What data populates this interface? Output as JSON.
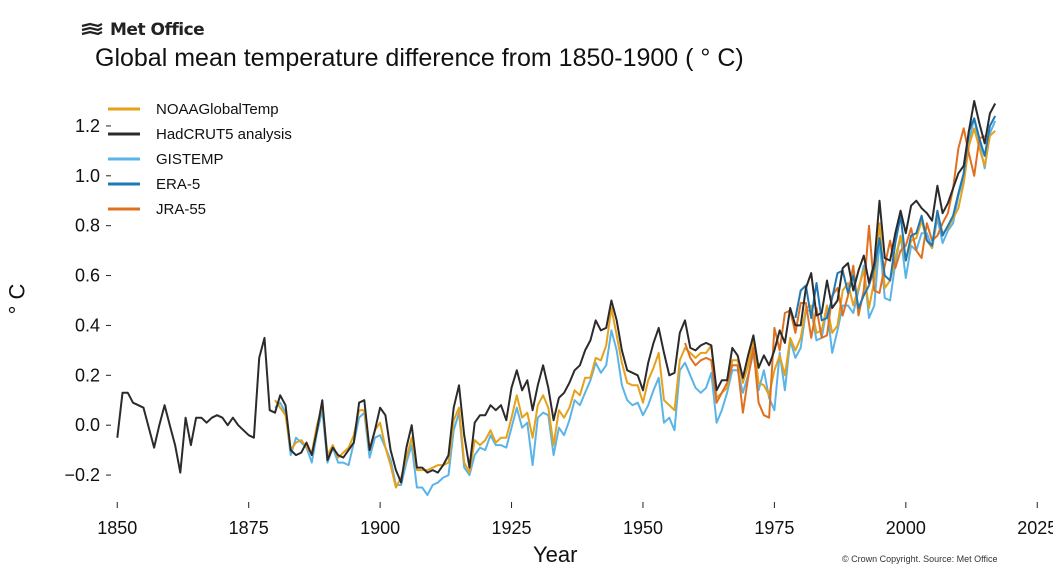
{
  "brand": {
    "logo_text": "Met Office"
  },
  "credit": "© Crown Copyright. Source: Met Office",
  "chart_data": {
    "type": "line",
    "title": "Global mean temperature difference from 1850-1900 ( ° C)",
    "xlabel": "Year",
    "ylabel": "° C",
    "xlim": [
      1849,
      2024
    ],
    "ylim": [
      -0.3,
      1.32
    ],
    "xticks": [
      1850,
      1875,
      1900,
      1925,
      1950,
      1975,
      2000,
      2025
    ],
    "yticks": [
      -0.2,
      0.0,
      0.2,
      0.4,
      0.6,
      0.8,
      1.0,
      1.2
    ],
    "ytick_labels": [
      "−0.2",
      "0.0",
      "0.2",
      "0.4",
      "0.6",
      "0.8",
      "1.0",
      "1.2"
    ],
    "grid": false,
    "legend_position": "top-left",
    "series": [
      {
        "name": "NOAAGlobalTemp",
        "color": "#e6a11a",
        "x_start": 1880,
        "values": [
          0.1,
          0.07,
          0.04,
          -0.1,
          -0.07,
          -0.06,
          -0.09,
          -0.11,
          0.0,
          0.08,
          -0.12,
          -0.08,
          -0.13,
          -0.11,
          -0.09,
          -0.04,
          0.06,
          0.06,
          -0.1,
          -0.02,
          0.01,
          -0.09,
          -0.16,
          -0.25,
          -0.21,
          -0.13,
          -0.05,
          -0.18,
          -0.18,
          -0.18,
          -0.17,
          -0.16,
          -0.16,
          -0.15,
          0.02,
          0.07,
          -0.15,
          -0.19,
          -0.06,
          -0.08,
          -0.06,
          -0.02,
          -0.07,
          -0.05,
          -0.05,
          0.03,
          0.12,
          0.03,
          0.05,
          -0.05,
          0.08,
          0.12,
          0.07,
          -0.08,
          0.06,
          0.03,
          0.07,
          0.14,
          0.12,
          0.19,
          0.19,
          0.27,
          0.26,
          0.32,
          0.47,
          0.36,
          0.25,
          0.17,
          0.16,
          0.16,
          0.09,
          0.18,
          0.23,
          0.29,
          0.1,
          0.08,
          0.06,
          0.26,
          0.31,
          0.29,
          0.27,
          0.29,
          0.29,
          0.32,
          0.11,
          0.13,
          0.15,
          0.26,
          0.26,
          0.17,
          0.24,
          0.34,
          0.17,
          0.16,
          0.12,
          0.22,
          0.28,
          0.2,
          0.35,
          0.3,
          0.35,
          0.47,
          0.48,
          0.37,
          0.38,
          0.48,
          0.37,
          0.4,
          0.54,
          0.57,
          0.48,
          0.55,
          0.62,
          0.47,
          0.58,
          0.81,
          0.55,
          0.58,
          0.67,
          0.76,
          0.66,
          0.74,
          0.75,
          0.82,
          0.74,
          0.71,
          0.85,
          0.77,
          0.79,
          0.83,
          0.87,
          0.97,
          1.12,
          1.19,
          1.11,
          1.04,
          1.16,
          1.18
        ]
      },
      {
        "name": "HadCRUT5 analysis",
        "color": "#2b2b2b",
        "x_start": 1850,
        "values": [
          -0.05,
          0.13,
          0.13,
          0.09,
          0.08,
          0.07,
          -0.01,
          -0.09,
          0.0,
          0.08,
          0.0,
          -0.08,
          -0.19,
          0.03,
          -0.08,
          0.03,
          0.03,
          0.01,
          0.03,
          0.04,
          0.03,
          0.0,
          0.03,
          0.0,
          -0.02,
          -0.04,
          -0.05,
          0.27,
          0.35,
          0.06,
          0.05,
          0.12,
          0.08,
          -0.1,
          -0.12,
          -0.11,
          -0.07,
          -0.12,
          -0.02,
          0.1,
          -0.14,
          -0.09,
          -0.12,
          -0.13,
          -0.1,
          -0.07,
          0.09,
          0.1,
          -0.1,
          -0.02,
          0.07,
          0.04,
          -0.1,
          -0.18,
          -0.23,
          -0.09,
          0.0,
          -0.17,
          -0.17,
          -0.19,
          -0.18,
          -0.19,
          -0.16,
          -0.12,
          0.07,
          0.16,
          -0.04,
          -0.17,
          0.01,
          0.04,
          0.04,
          0.08,
          0.06,
          0.08,
          0.02,
          0.15,
          0.22,
          0.14,
          0.18,
          0.06,
          0.16,
          0.24,
          0.15,
          0.02,
          0.11,
          0.13,
          0.17,
          0.22,
          0.24,
          0.3,
          0.34,
          0.42,
          0.38,
          0.39,
          0.5,
          0.42,
          0.3,
          0.22,
          0.21,
          0.2,
          0.14,
          0.25,
          0.33,
          0.39,
          0.29,
          0.2,
          0.21,
          0.37,
          0.42,
          0.31,
          0.3,
          0.32,
          0.33,
          0.32,
          0.14,
          0.18,
          0.18,
          0.31,
          0.28,
          0.19,
          0.28,
          0.36,
          0.23,
          0.28,
          0.24,
          0.3,
          0.38,
          0.33,
          0.47,
          0.4,
          0.4,
          0.55,
          0.61,
          0.44,
          0.45,
          0.58,
          0.47,
          0.5,
          0.63,
          0.65,
          0.54,
          0.62,
          0.68,
          0.57,
          0.65,
          0.9,
          0.67,
          0.66,
          0.77,
          0.86,
          0.77,
          0.88,
          0.9,
          0.87,
          0.85,
          0.82,
          0.96,
          0.85,
          0.89,
          0.95,
          1.01,
          1.04,
          1.18,
          1.3,
          1.21,
          1.13,
          1.25,
          1.29
        ]
      },
      {
        "name": "GISTEMP",
        "color": "#5ab4e8",
        "x_start": 1880,
        "values": [
          0.07,
          0.09,
          0.05,
          -0.12,
          -0.05,
          -0.07,
          -0.09,
          -0.15,
          -0.03,
          0.06,
          -0.15,
          -0.09,
          -0.15,
          -0.15,
          -0.16,
          -0.07,
          0.03,
          0.05,
          -0.13,
          -0.05,
          -0.04,
          -0.09,
          -0.14,
          -0.24,
          -0.24,
          -0.15,
          -0.08,
          -0.25,
          -0.25,
          -0.28,
          -0.24,
          -0.23,
          -0.21,
          -0.2,
          -0.02,
          0.05,
          -0.17,
          -0.2,
          -0.12,
          -0.09,
          -0.1,
          -0.04,
          -0.08,
          -0.08,
          -0.09,
          -0.01,
          0.07,
          -0.01,
          0.01,
          -0.16,
          0.03,
          0.05,
          0.04,
          -0.12,
          -0.01,
          -0.04,
          0.02,
          0.1,
          0.08,
          0.13,
          0.18,
          0.25,
          0.21,
          0.24,
          0.38,
          0.3,
          0.16,
          0.1,
          0.08,
          0.09,
          0.04,
          0.08,
          0.14,
          0.19,
          0.01,
          0.03,
          -0.02,
          0.22,
          0.25,
          0.2,
          0.15,
          0.13,
          0.15,
          0.21,
          0.01,
          0.06,
          0.13,
          0.22,
          0.22,
          0.13,
          0.2,
          0.29,
          0.14,
          0.22,
          0.11,
          0.06,
          0.29,
          0.14,
          0.34,
          0.27,
          0.31,
          0.46,
          0.46,
          0.34,
          0.35,
          0.47,
          0.29,
          0.38,
          0.48,
          0.48,
          0.45,
          0.54,
          0.64,
          0.43,
          0.48,
          0.74,
          0.51,
          0.5,
          0.65,
          0.76,
          0.59,
          0.72,
          0.7,
          0.77,
          0.77,
          0.71,
          0.83,
          0.73,
          0.78,
          0.81,
          0.92,
          0.99,
          1.14,
          1.23,
          1.13,
          1.03,
          1.17,
          1.22
        ]
      },
      {
        "name": "ERA-5",
        "color": "#1f78b4",
        "x_start": 1979,
        "values": [
          0.43,
          0.54,
          0.56,
          0.43,
          0.57,
          0.42,
          0.43,
          0.51,
          0.61,
          0.62,
          0.53,
          0.6,
          0.47,
          0.52,
          0.56,
          0.63,
          0.75,
          0.6,
          0.58,
          0.73,
          0.84,
          0.66,
          0.76,
          0.77,
          0.84,
          0.74,
          0.72,
          0.86,
          0.76,
          0.8,
          0.84,
          0.93,
          1.01,
          1.18,
          1.23,
          1.15,
          1.08,
          1.2,
          1.24
        ]
      },
      {
        "name": "JRA-55",
        "color": "#e07020",
        "x_start": 1958,
        "values": [
          0.33,
          0.27,
          0.24,
          0.26,
          0.27,
          0.26,
          0.09,
          0.13,
          0.17,
          0.24,
          0.24,
          0.05,
          0.19,
          0.31,
          0.09,
          0.04,
          0.03,
          0.39,
          0.3,
          0.45,
          0.46,
          0.37,
          0.49,
          0.49,
          0.35,
          0.47,
          0.35,
          0.36,
          0.52,
          0.55,
          0.44,
          0.52,
          0.64,
          0.44,
          0.54,
          0.8,
          0.54,
          0.53,
          0.64,
          0.74,
          0.63,
          0.7,
          0.72,
          0.79,
          0.7,
          0.67,
          0.81,
          0.74,
          0.76,
          0.81,
          0.85,
          0.95,
          1.11,
          1.19,
          1.09,
          1.0,
          1.15,
          1.16
        ]
      }
    ]
  }
}
